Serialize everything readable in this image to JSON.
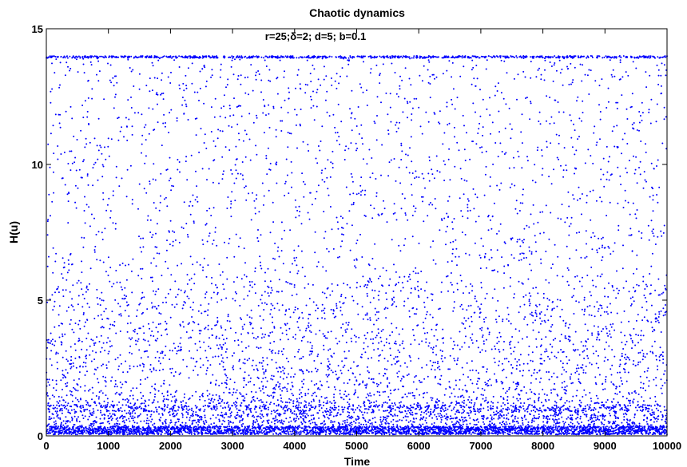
{
  "chart_data": {
    "type": "scatter",
    "title": "Chaotic dynamics",
    "annotation": "r=25;δ=2; d=5; b=0.1",
    "xlabel": "Time",
    "ylabel": "H(u)",
    "xlim": [
      0,
      10000
    ],
    "ylim": [
      0,
      15
    ],
    "x_ticks": [
      0,
      1000,
      2000,
      3000,
      4000,
      5000,
      6000,
      7000,
      8000,
      9000,
      10000
    ],
    "y_ticks": [
      0,
      5,
      10,
      15
    ],
    "grid": false,
    "legend": "none",
    "series": [
      {
        "color": "#0000ff",
        "marker": "dot",
        "n_points": 10000,
        "x_range": [
          1,
          10000
        ],
        "y_range": [
          0.05,
          14.0
        ],
        "distribution": "dense band near 0.1–0.3 with a secondary band near 1.0; sparse scatter up to 14.0 with accumulation at the 14.0 ceiling"
      }
    ]
  }
}
